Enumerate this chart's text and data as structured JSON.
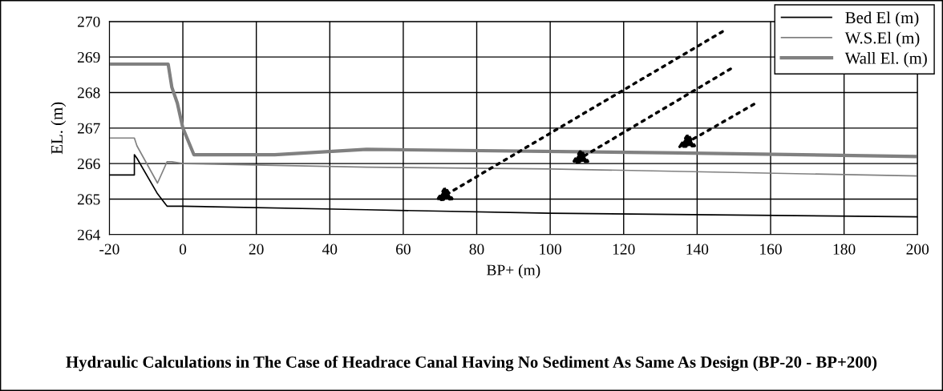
{
  "chart_data": {
    "type": "line",
    "title": "Hydraulic Calculations in The Case of Headrace Canal Having No Sediment As Same As Design (BP-20 - BP+200)",
    "xlabel": "BP+ (m)",
    "ylabel": "EL. (m)",
    "xlim": [
      -20,
      200
    ],
    "xticks": [
      -20,
      0,
      20,
      40,
      60,
      80,
      100,
      120,
      140,
      160,
      180,
      200
    ],
    "ylim": [
      264,
      270
    ],
    "yticks": [
      264,
      265,
      266,
      267,
      268,
      269,
      270
    ],
    "grid": true,
    "legend": "top right",
    "marker": "none",
    "line_style": "solid",
    "series": [
      {
        "name": "Bed El (m)",
        "color": "#000000",
        "x": [
          -20,
          -13.2,
          -13.2,
          -12.5,
          -6.9,
          -4.3,
          0,
          50,
          100,
          200
        ],
        "values": [
          265.68,
          265.68,
          266.25,
          266.15,
          265.15,
          264.8,
          264.8,
          264.7,
          264.6,
          264.5
        ]
      },
      {
        "name": "W.S.El (m)",
        "color": "#808080",
        "x": [
          -20,
          -13.2,
          -12.5,
          -6.9,
          -4.3,
          -3,
          0,
          50,
          100,
          200
        ],
        "values": [
          266.72,
          266.72,
          266.5,
          265.45,
          266.05,
          266.05,
          266.0,
          265.9,
          265.85,
          265.65
        ]
      },
      {
        "name": "Wall El. (m)",
        "color": "#808080",
        "x": [
          -20,
          -4,
          -3,
          -1.5,
          0,
          3,
          25,
          50,
          135,
          200
        ],
        "values": [
          268.8,
          268.8,
          268.15,
          267.7,
          267.0,
          266.25,
          266.25,
          266.4,
          266.3,
          266.2
        ]
      }
    ]
  }
}
